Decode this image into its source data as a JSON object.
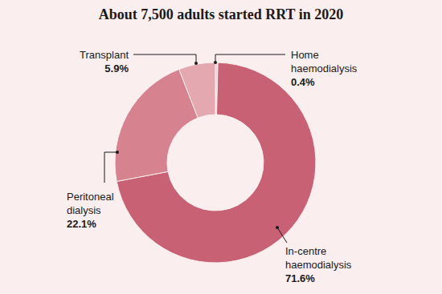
{
  "chart_data": {
    "type": "pie",
    "title": "About 7,500 adults started RRT in 2020",
    "categories": [
      "Home haemodialysis",
      "In-centre haemodialysis",
      "Peritoneal dialysis",
      "Transplant"
    ],
    "values": [
      0.4,
      71.6,
      22.1,
      5.9
    ],
    "value_labels": [
      "0.4%",
      "71.6%",
      "22.1%",
      "5.9%"
    ],
    "colors": [
      "#eed3d6",
      "#c96174",
      "#d6838f",
      "#e3a8b0"
    ],
    "data_labels": true
  }
}
